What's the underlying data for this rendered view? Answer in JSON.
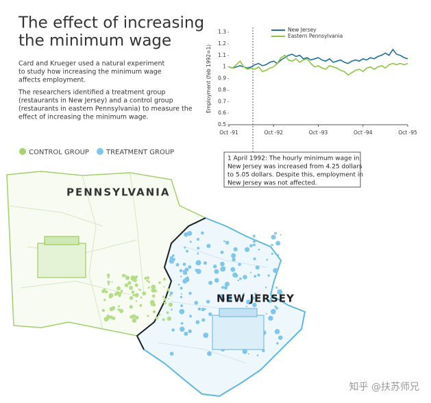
{
  "title": [
    "The effect of increasing",
    "the minimum wage"
  ],
  "intro": [
    "Card and Krueger used a natural experiment",
    "to study how increasing the minimum wage",
    "affects employment."
  ],
  "method": [
    "The researchers identified a treatment group",
    "(restaurants in New Jersey) and a control group",
    "(restaurants in eastern Pennsylvania) to measure the",
    "effect of increasing the minimum wage."
  ],
  "groups": [
    "CONTROL GROUP",
    "TREATMENT GROUP"
  ],
  "map_labels": [
    "PENNSYLVANIA",
    "NEW JERSEY"
  ],
  "annotation": [
    "1 April 1992: The hourly minimum wage in",
    "New Jersey was increased from 4.25 dollars",
    "to 5.05 dollars. Despite this, employment in",
    "New Jersey was not affected."
  ],
  "watermark": "知乎 @扶苏师兄",
  "chart_data": {
    "type": "line",
    "y_label": "Employment (feb 1992=1)",
    "categories": [
      "Oct -91",
      null,
      null,
      null,
      null,
      null,
      null,
      null,
      null,
      null,
      null,
      null,
      "Oct -92",
      null,
      null,
      null,
      null,
      null,
      null,
      null,
      null,
      null,
      null,
      null,
      "Oct -93",
      null,
      null,
      null,
      null,
      null,
      null,
      null,
      null,
      null,
      null,
      null,
      "Oct -94",
      null,
      null,
      null,
      null,
      null,
      null,
      null,
      null,
      null,
      null,
      null,
      "Oct -95"
    ],
    "series": [
      {
        "name": "New Jersey",
        "color": "#1f6f9a",
        "values": [
          1.0,
          0.99,
          1.0,
          1.01,
          1.0,
          0.99,
          1.0,
          1.02,
          1.03,
          1.01,
          1.02,
          1.04,
          1.05,
          1.03,
          1.06,
          1.08,
          1.1,
          1.11,
          1.09,
          1.1,
          1.07,
          1.08,
          1.06,
          1.07,
          1.08,
          1.06,
          1.05,
          1.07,
          1.04,
          1.05,
          1.06,
          1.04,
          1.03,
          1.05,
          1.06,
          1.05,
          1.07,
          1.06,
          1.08,
          1.07,
          1.09,
          1.1,
          1.12,
          1.1,
          1.15,
          1.11,
          1.1,
          1.08,
          1.07
        ]
      },
      {
        "name": "Eastern Pennsylvania",
        "color": "#8cc63f",
        "values": [
          1.0,
          0.99,
          1.02,
          1.05,
          1.0,
          0.98,
          0.99,
          0.98,
          1.0,
          0.96,
          0.97,
          0.99,
          1.0,
          1.03,
          1.08,
          1.1,
          1.06,
          1.05,
          1.07,
          1.04,
          1.06,
          1.07,
          1.03,
          1.0,
          1.01,
          0.99,
          0.98,
          1.01,
          1.0,
          0.99,
          0.97,
          0.96,
          0.93,
          0.95,
          0.97,
          0.98,
          0.96,
          0.99,
          1.0,
          0.98,
          1.0,
          1.01,
          0.99,
          1.02,
          1.03,
          1.02,
          1.03,
          1.02,
          1.03
        ]
      }
    ],
    "ylim": [
      0.5,
      1.3
    ],
    "yticks": [
      0.5,
      0.6,
      0.7,
      0.8,
      0.9,
      1,
      1.1,
      1.2,
      1.3
    ]
  }
}
